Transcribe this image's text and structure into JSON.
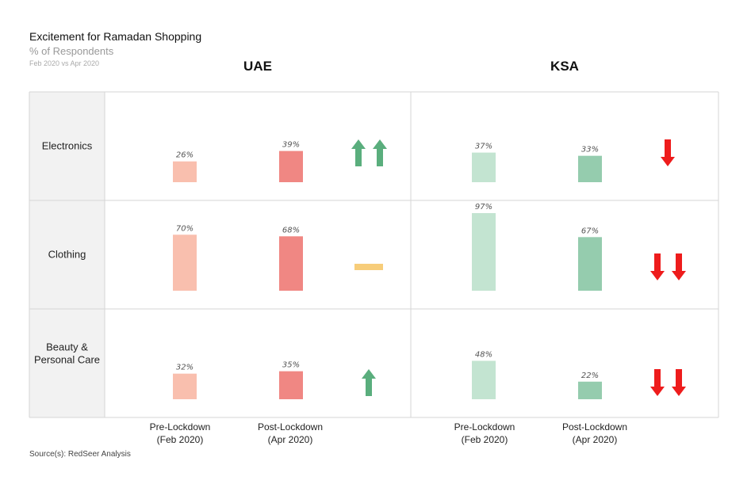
{
  "chart_data": {
    "type": "bar",
    "title": "Excitement for Ramadan Shopping",
    "subtitle": "% of Respondents",
    "period": "Feb 2020 vs Apr 2020",
    "categories": [
      "Electronics",
      "Clothing",
      "Beauty & Personal Care"
    ],
    "category_lines": [
      [
        "Electronics"
      ],
      [
        "Clothing"
      ],
      [
        "Beauty &",
        "Personal Care"
      ]
    ],
    "periods": [
      {
        "line1": "Pre-Lockdown",
        "line2": "(Feb 2020)"
      },
      {
        "line1": "Post-Lockdown",
        "line2": "(Apr 2020)"
      }
    ],
    "panels": [
      {
        "region": "UAE",
        "colors": {
          "pre": "#f9bfae",
          "post": "#f08783"
        },
        "series": [
          {
            "name": "Pre-Lockdown (Feb 2020)",
            "values": [
              26,
              70,
              32
            ]
          },
          {
            "name": "Post-Lockdown (Apr 2020)",
            "values": [
              39,
              68,
              35
            ]
          }
        ],
        "trend": [
          {
            "direction": "up",
            "count": 2
          },
          {
            "direction": "flat",
            "count": 1
          },
          {
            "direction": "up",
            "count": 1
          }
        ]
      },
      {
        "region": "KSA",
        "colors": {
          "pre": "#c3e4d1",
          "post": "#95ccae"
        },
        "series": [
          {
            "name": "Pre-Lockdown (Feb 2020)",
            "values": [
              37,
              97,
              48
            ]
          },
          {
            "name": "Post-Lockdown (Apr 2020)",
            "values": [
              33,
              67,
              22
            ]
          }
        ],
        "trend": [
          {
            "direction": "down",
            "count": 1
          },
          {
            "direction": "down",
            "count": 2
          },
          {
            "direction": "down",
            "count": 2
          }
        ]
      }
    ],
    "trend_colors": {
      "up": "#5aae7d",
      "flat": "#f7cd7a",
      "down": "#ee1c1c"
    },
    "value_suffix": "%",
    "ylim": [
      0,
      100
    ],
    "source": "Source(s): RedSeer Analysis"
  }
}
